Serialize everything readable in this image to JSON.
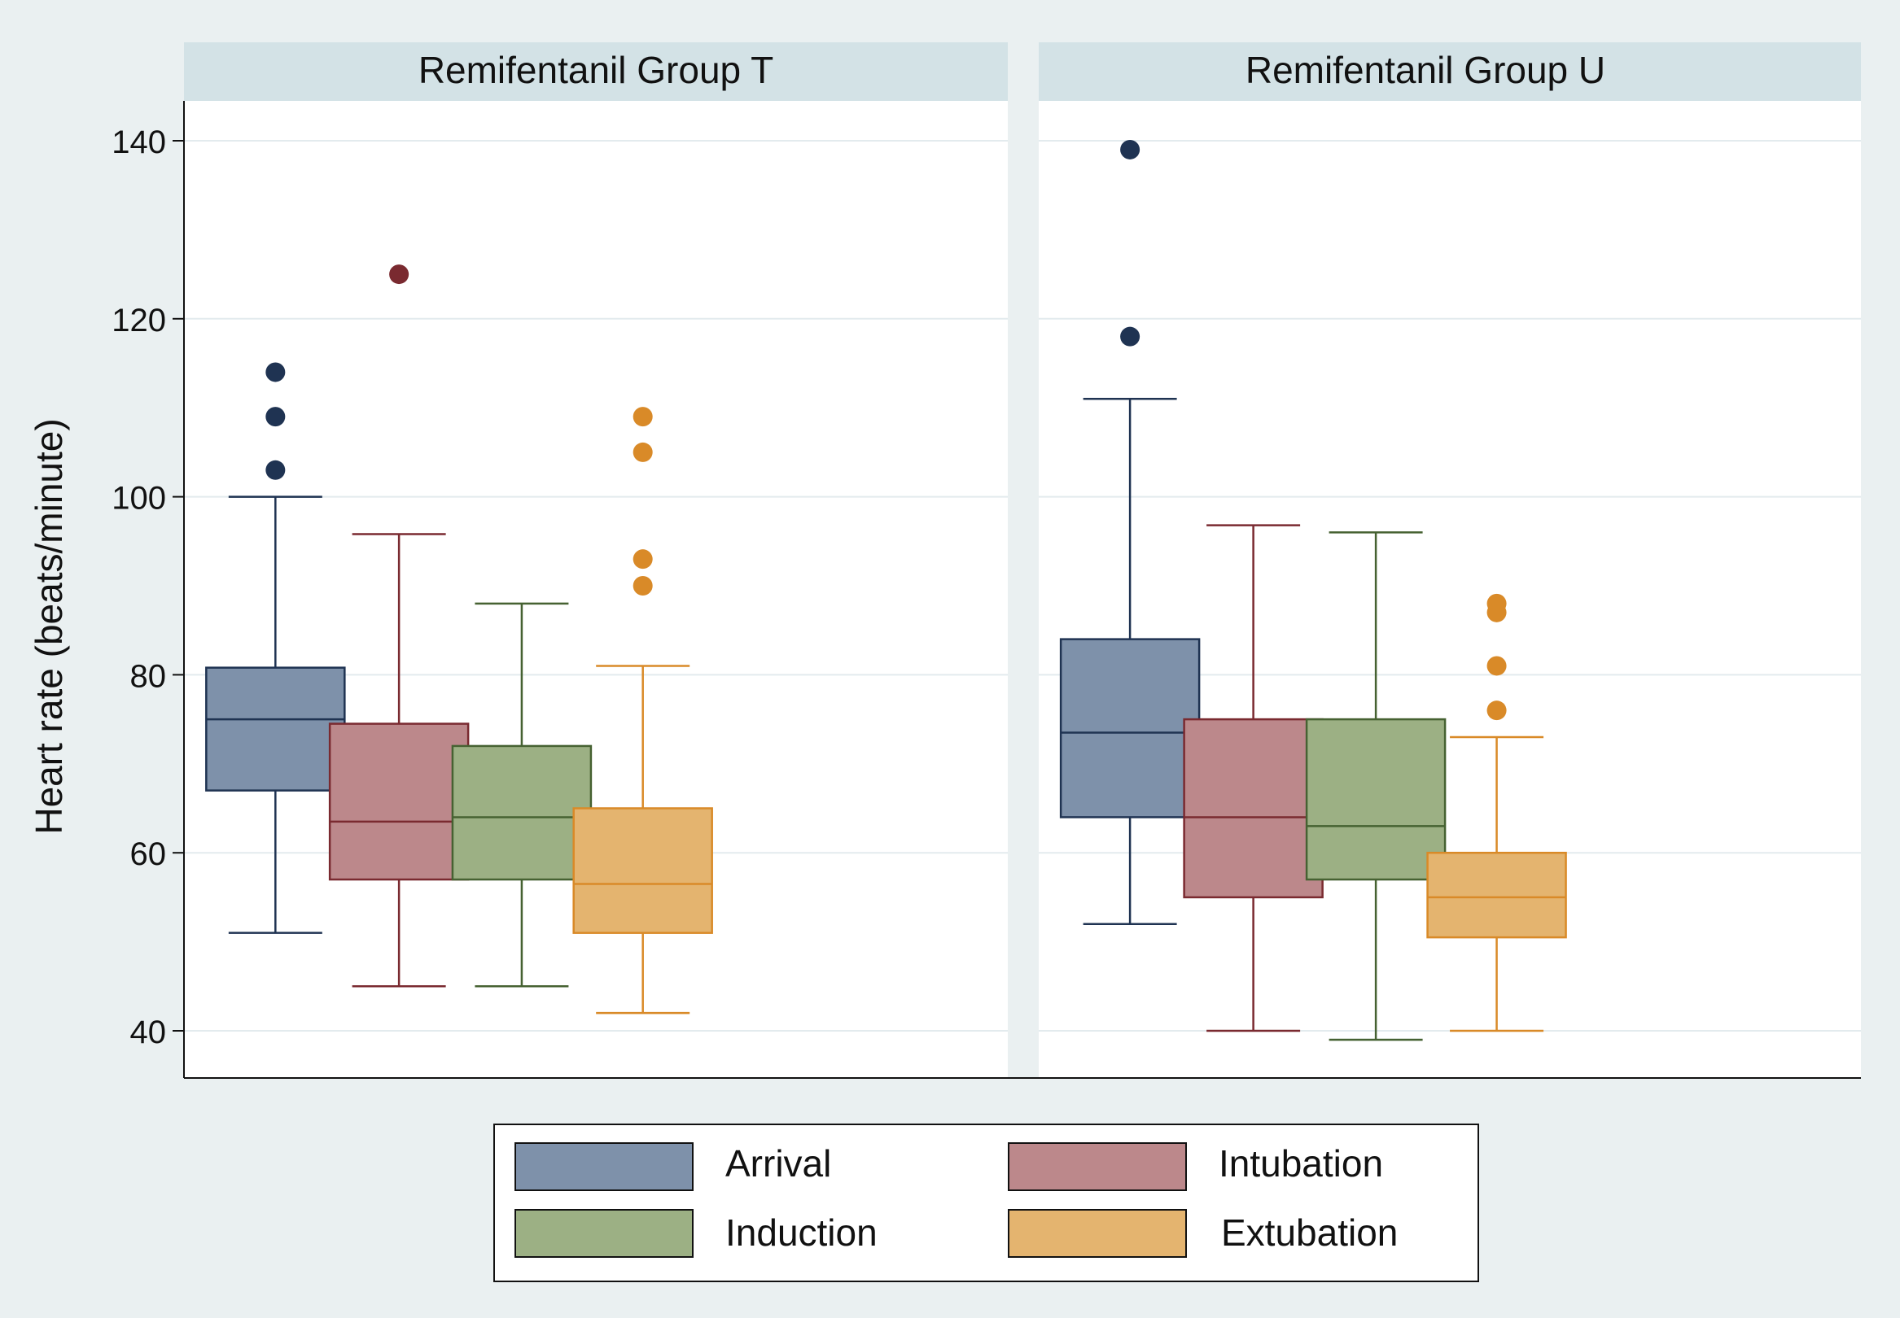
{
  "chart_data": {
    "type": "box",
    "ylabel": "Heart rate (beats/minute)",
    "ylim": [
      35,
      145
    ],
    "yticks": [
      40,
      60,
      80,
      100,
      120,
      140
    ],
    "grid": true,
    "legend_position": "bottom",
    "series": [
      {
        "name": "Arrival",
        "color": "#7e91aa",
        "stroke": "#1f3352"
      },
      {
        "name": "Intubation",
        "color": "#bc888b",
        "stroke": "#7a2a30"
      },
      {
        "name": "Induction",
        "color": "#9cb084",
        "stroke": "#466232"
      },
      {
        "name": "Extubation",
        "color": "#e4b46f",
        "stroke": "#d98a28"
      }
    ],
    "panels": [
      {
        "title": "Remifentanil Group T",
        "boxes": [
          {
            "series": "Arrival",
            "whisker_low": 51,
            "q1": 67,
            "median": 75,
            "q3": 80.8,
            "whisker_high": 100,
            "outliers": [
              103,
              109,
              114
            ]
          },
          {
            "series": "Intubation",
            "whisker_low": 45,
            "q1": 57,
            "median": 63.5,
            "q3": 74.5,
            "whisker_high": 95.8,
            "outliers": [
              125
            ]
          },
          {
            "series": "Induction",
            "whisker_low": 45,
            "q1": 57,
            "median": 64,
            "q3": 72,
            "whisker_high": 88,
            "outliers": []
          },
          {
            "series": "Extubation",
            "whisker_low": 42,
            "q1": 51,
            "median": 56.5,
            "q3": 65,
            "whisker_high": 81,
            "outliers": [
              90,
              93,
              105,
              109
            ]
          }
        ]
      },
      {
        "title": "Remifentanil Group U",
        "boxes": [
          {
            "series": "Arrival",
            "whisker_low": 52,
            "q1": 64,
            "median": 73.5,
            "q3": 84,
            "whisker_high": 111,
            "outliers": [
              118,
              139
            ]
          },
          {
            "series": "Intubation",
            "whisker_low": 40,
            "q1": 55,
            "median": 64,
            "q3": 75,
            "whisker_high": 96.8,
            "outliers": []
          },
          {
            "series": "Induction",
            "whisker_low": 39,
            "q1": 57,
            "median": 63,
            "q3": 75,
            "whisker_high": 96,
            "outliers": []
          },
          {
            "series": "Extubation",
            "whisker_low": 40,
            "q1": 50.5,
            "median": 55,
            "q3": 60,
            "whisker_high": 73,
            "outliers": [
              76,
              81,
              87,
              88
            ]
          }
        ]
      }
    ]
  }
}
